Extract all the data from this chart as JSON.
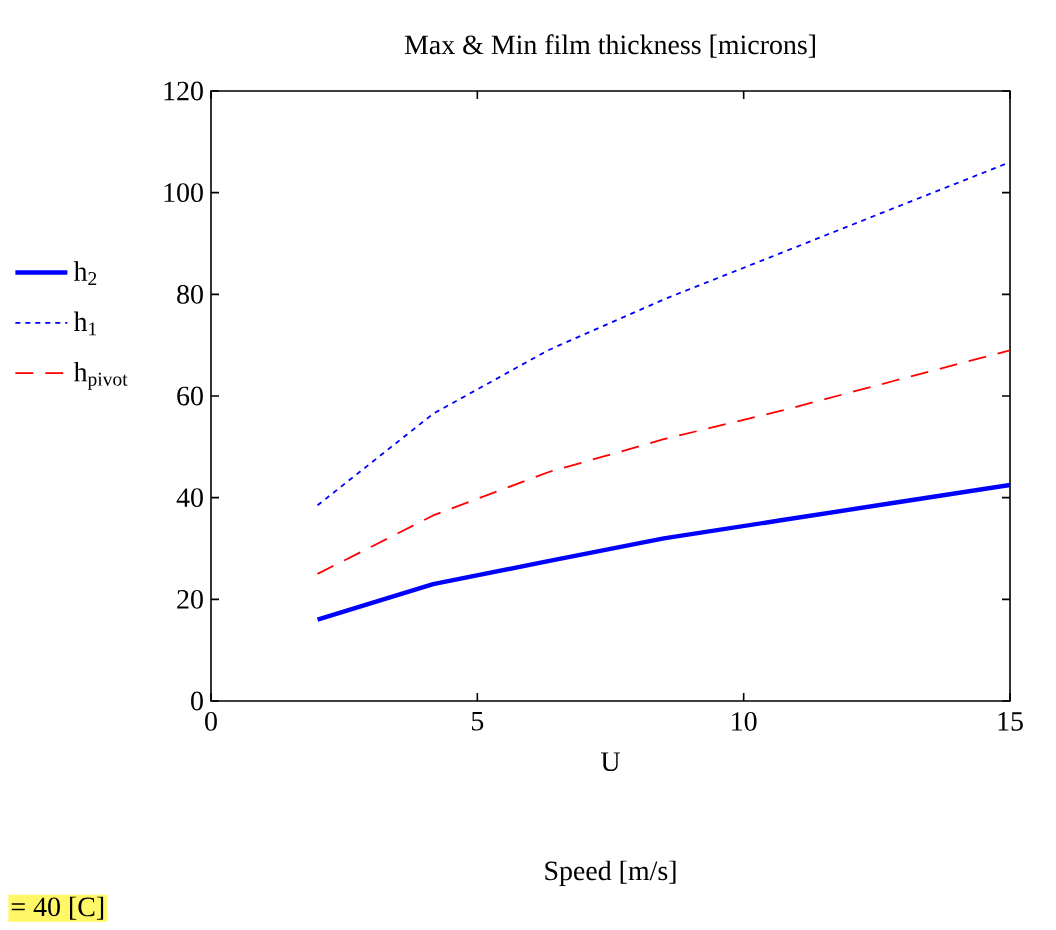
{
  "chart_data": {
    "type": "line",
    "title": "Max & Min film thickness [microns]",
    "xlabel": "U",
    "annotations": [
      "Speed [m/s]",
      "= 40 [C]"
    ],
    "x": [
      2,
      4.17,
      6.33,
      8.5,
      10.67,
      12.83,
      15
    ],
    "series": [
      {
        "name": "h$_{2}$",
        "color": "#0000ff",
        "line_style": "solid",
        "values": [
          16,
          23,
          27.5,
          32,
          35.5,
          39,
          42.5
        ]
      },
      {
        "name": "h$_{1}$",
        "color": "#0000ff",
        "line_style": "dotted",
        "values": [
          38.5,
          56.5,
          69,
          79,
          88,
          97,
          106
        ]
      },
      {
        "name": "h$_{pivot}$",
        "color": "#ff0000",
        "line_style": "dashed",
        "values": [
          25,
          36.5,
          45,
          51.5,
          57,
          63,
          69
        ]
      }
    ],
    "xlim": [
      0,
      15
    ],
    "xticks": [
      0,
      5,
      10,
      15
    ],
    "ylim": [
      0,
      120
    ],
    "yticks": [
      0,
      20,
      40,
      60,
      80,
      100,
      120
    ],
    "legend": "left",
    "grid": false
  }
}
